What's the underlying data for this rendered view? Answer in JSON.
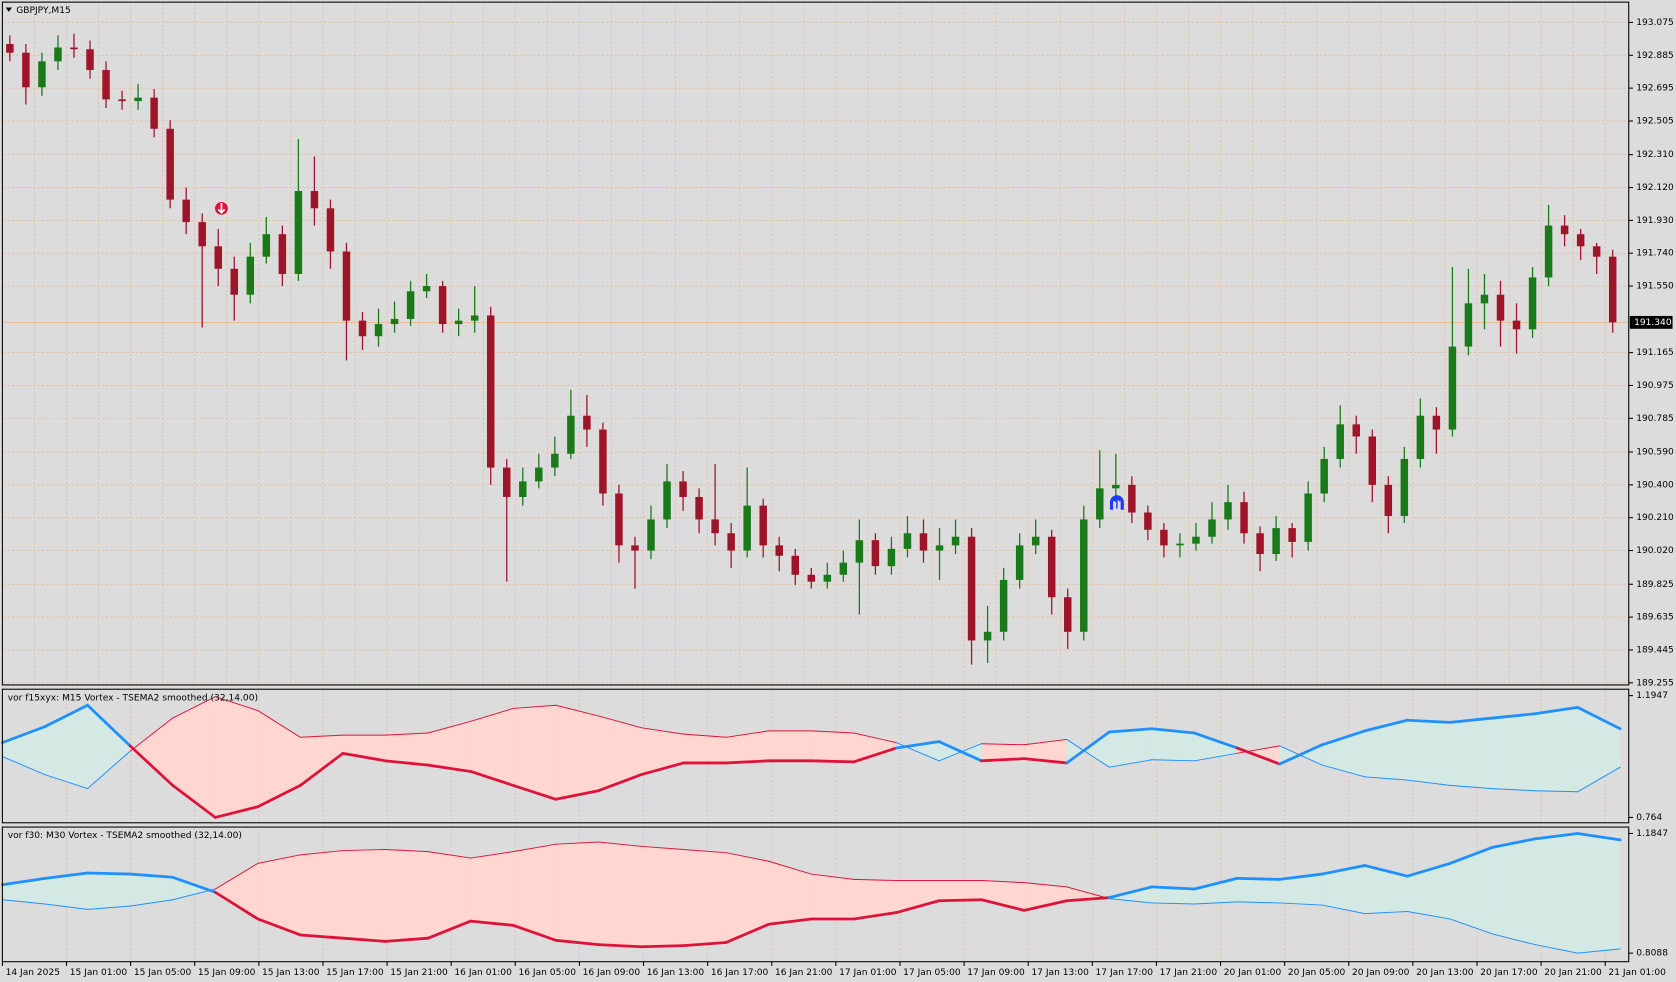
{
  "chart_data": [
    {
      "type": "candlestick",
      "title": "GBPJPY,M15",
      "x_labels": [
        "14 Jan 2025",
        "15 Jan 01:00",
        "15 Jan 05:00",
        "15 Jan 09:00",
        "15 Jan 13:00",
        "15 Jan 17:00",
        "15 Jan 21:00",
        "16 Jan 01:00",
        "16 Jan 05:00",
        "16 Jan 09:00",
        "16 Jan 13:00",
        "16 Jan 17:00",
        "16 Jan 21:00",
        "17 Jan 01:00",
        "17 Jan 05:00",
        "17 Jan 09:00",
        "17 Jan 13:00",
        "17 Jan 17:00",
        "17 Jan 21:00",
        "20 Jan 01:00",
        "20 Jan 05:00",
        "20 Jan 09:00",
        "20 Jan 13:00",
        "20 Jan 17:00",
        "20 Jan 21:00",
        "21 Jan 01:00"
      ],
      "open": [
        192.95,
        192.9,
        192.7,
        192.85,
        192.93,
        192.92,
        192.8,
        192.63,
        192.62,
        192.64,
        192.46,
        192.05,
        191.92,
        191.78,
        191.65,
        191.5,
        191.72,
        191.85,
        191.62,
        192.1,
        192.0,
        191.75,
        191.35,
        191.26,
        191.33,
        191.36,
        191.52,
        191.55,
        191.33,
        191.35,
        191.38,
        190.5,
        190.33,
        190.42,
        190.5,
        190.58,
        190.8,
        190.72,
        190.35,
        190.05,
        190.02,
        190.2,
        190.42,
        190.33,
        190.2,
        190.12,
        190.02,
        190.28,
        190.05,
        189.99,
        189.88,
        189.84,
        189.88,
        189.95,
        190.08,
        189.93,
        190.03,
        190.12,
        190.02,
        190.05,
        190.1,
        189.5,
        189.55,
        189.85,
        190.05,
        190.1,
        189.75,
        189.55,
        190.2,
        190.38,
        190.4,
        190.24,
        190.14,
        190.05,
        190.06,
        190.1,
        190.2,
        190.3,
        190.12,
        190.0,
        190.15,
        190.07,
        190.35,
        190.55,
        190.75,
        190.68,
        190.4,
        190.22,
        190.55,
        190.8,
        190.72,
        191.2,
        191.45,
        191.5,
        191.35,
        191.3,
        191.6,
        191.9,
        191.85,
        191.78,
        191.72
      ],
      "high": [
        193.0,
        192.95,
        192.9,
        193.0,
        193.01,
        192.97,
        192.85,
        192.68,
        192.72,
        192.69,
        192.51,
        192.12,
        191.97,
        191.88,
        191.72,
        191.8,
        191.95,
        191.9,
        192.4,
        192.3,
        192.05,
        191.8,
        191.4,
        191.42,
        191.46,
        191.58,
        191.62,
        191.58,
        191.42,
        191.55,
        191.43,
        190.55,
        190.5,
        190.58,
        190.68,
        190.95,
        190.92,
        190.76,
        190.4,
        190.1,
        190.28,
        190.52,
        190.48,
        190.38,
        190.52,
        190.18,
        190.5,
        190.32,
        190.1,
        190.03,
        189.92,
        189.95,
        190.02,
        190.2,
        190.12,
        190.1,
        190.22,
        190.2,
        190.15,
        190.2,
        190.15,
        189.7,
        189.92,
        190.12,
        190.2,
        190.14,
        189.8,
        190.28,
        190.6,
        190.58,
        190.45,
        190.28,
        190.18,
        190.12,
        190.18,
        190.3,
        190.4,
        190.36,
        190.16,
        190.22,
        190.18,
        190.42,
        190.62,
        190.86,
        190.8,
        190.72,
        190.45,
        190.62,
        190.9,
        190.85,
        191.66,
        191.65,
        191.62,
        191.58,
        191.45,
        191.66,
        192.02,
        191.96,
        191.88,
        191.8,
        191.76
      ],
      "low": [
        192.85,
        192.6,
        192.65,
        192.8,
        192.87,
        192.75,
        192.58,
        192.57,
        192.57,
        192.41,
        192.0,
        191.85,
        191.31,
        191.55,
        191.35,
        191.45,
        191.68,
        191.55,
        191.58,
        191.9,
        191.65,
        191.12,
        191.18,
        191.2,
        191.28,
        191.32,
        191.48,
        191.28,
        191.26,
        191.28,
        190.4,
        189.84,
        190.28,
        190.38,
        190.45,
        190.55,
        190.62,
        190.28,
        189.95,
        189.8,
        189.97,
        190.15,
        190.25,
        190.12,
        190.05,
        189.92,
        189.98,
        189.98,
        189.9,
        189.82,
        189.8,
        189.8,
        189.84,
        189.65,
        189.88,
        189.88,
        189.98,
        189.95,
        189.85,
        190.0,
        189.36,
        189.37,
        189.5,
        189.8,
        190.0,
        189.65,
        189.45,
        189.5,
        190.15,
        190.3,
        190.18,
        190.08,
        189.98,
        189.98,
        190.02,
        190.06,
        190.14,
        190.06,
        189.9,
        189.96,
        189.98,
        190.02,
        190.3,
        190.5,
        190.58,
        190.3,
        190.12,
        190.18,
        190.5,
        190.58,
        190.68,
        191.15,
        191.3,
        191.2,
        191.16,
        191.25,
        191.55,
        191.78,
        191.7,
        191.62,
        191.28
      ],
      "close": [
        192.9,
        192.7,
        192.85,
        192.93,
        192.92,
        192.8,
        192.63,
        192.62,
        192.64,
        192.46,
        192.05,
        191.92,
        191.78,
        191.65,
        191.5,
        191.72,
        191.85,
        191.62,
        192.1,
        192.0,
        191.75,
        191.35,
        191.26,
        191.33,
        191.36,
        191.52,
        191.55,
        191.33,
        191.35,
        191.38,
        190.5,
        190.33,
        190.42,
        190.5,
        190.58,
        190.8,
        190.72,
        190.35,
        190.05,
        190.02,
        190.2,
        190.42,
        190.33,
        190.2,
        190.12,
        190.02,
        190.28,
        190.05,
        189.99,
        189.88,
        189.84,
        189.88,
        189.95,
        190.08,
        189.93,
        190.03,
        190.12,
        190.02,
        190.05,
        190.1,
        189.5,
        189.55,
        189.85,
        190.05,
        190.1,
        189.75,
        189.55,
        190.2,
        190.38,
        190.4,
        190.24,
        190.14,
        190.05,
        190.06,
        190.1,
        190.2,
        190.3,
        190.12,
        190.0,
        190.15,
        190.07,
        190.35,
        190.55,
        190.75,
        190.68,
        190.4,
        190.22,
        190.55,
        190.8,
        190.72,
        191.2,
        191.45,
        191.5,
        191.35,
        191.3,
        191.6,
        191.9,
        191.85,
        191.78,
        191.72,
        191.34
      ],
      "up_color": "#1a7a1a",
      "down_color": "#a0142a",
      "ylim": [
        189.255,
        193.075
      ],
      "yticks": [
        193.075,
        192.885,
        192.695,
        192.505,
        {
          "value": 192.31,
          "label": "192.310"
        },
        {
          "value": 192.12,
          "label": "192.120"
        },
        {
          "value": 191.93,
          "label": "191.930"
        },
        {
          "value": 191.74,
          "label": "191.740"
        },
        {
          "value": 191.55,
          "label": "191.550"
        },
        191.165,
        190.975,
        190.785,
        {
          "value": 190.59,
          "label": "190.590"
        },
        {
          "value": 190.4,
          "label": "190.400"
        },
        {
          "value": 190.21,
          "label": "190.210"
        },
        {
          "value": 190.02,
          "label": "190.020"
        },
        189.825,
        189.635,
        189.445,
        189.255
      ],
      "current_price": {
        "value": 191.34,
        "label": "191.340"
      },
      "grid": true
    },
    {
      "type": "vortex",
      "title": "vor f15xyx: M15 Vortex - TSEMA2 smoothed (32,14.00)",
      "ylim": [
        0.764,
        1.1947
      ],
      "yticks": [
        1.1947,
        0.764
      ],
      "series": [
        {
          "values": [
            1.0285,
            1.0851,
            1.1607,
            1.0171,
            0.8773,
            0.764,
            0.8018,
            0.8773,
            0.9907,
            0.9642,
            0.9491,
            0.9265,
            0.8773,
            0.8282,
            0.8585,
            0.9151,
            0.9567,
            0.9567,
            0.9642,
            0.9642,
            0.9605,
            1.0096,
            1.0322,
            0.9642,
            0.9718,
            0.9567,
            1.0662,
            1.0776,
            1.0625,
            1.0096,
            0.9529,
            1.0209,
            1.07,
            1.1078,
            1.1002,
            1.1154,
            1.1305,
            1.1531,
            1.0776
          ]
        },
        {
          "values": [
            0.9794,
            0.9151,
            0.866,
            0.9982,
            1.1154,
            1.1909,
            1.1418,
            1.0474,
            1.0549,
            1.0549,
            1.0625,
            1.104,
            1.1494,
            1.1607,
            1.1229,
            1.0814,
            1.0587,
            1.0474,
            1.07,
            1.07,
            1.0625,
            1.0285,
            0.9642,
            1.0247,
            1.0209,
            1.0398,
            0.9416,
            0.968,
            0.9642,
            0.9907,
            1.0171,
            0.9491,
            0.9076,
            0.8962,
            0.8773,
            0.866,
            0.8585,
            0.8547,
            0.9416
          ]
        }
      ],
      "up_color": "#1e90ff",
      "down_color": "#dc143c",
      "up_fill": "#d4e8e4",
      "down_fill": "#ffd6d0"
    },
    {
      "type": "vortex",
      "title": "vor f30: M30 Vortex - TSEMA2 smoothed (32,14.00)",
      "ylim": [
        0.8088,
        1.1847
      ],
      "yticks": [
        1.1847,
        0.8088
      ],
      "series": [
        {
          "values": [
            1.0236,
            1.0437,
            1.0605,
            1.0572,
            1.0471,
            1.0001,
            0.9162,
            0.8659,
            0.8558,
            0.8457,
            0.8558,
            0.9095,
            0.8961,
            0.8491,
            0.8357,
            0.829,
            0.8323,
            0.8424,
            0.8994,
            0.9162,
            0.9162,
            0.9363,
            0.9733,
            0.9766,
            0.9431,
            0.9733,
            0.9833,
            1.0169,
            1.0102,
            1.0437,
            1.0404,
            1.0572,
            1.084,
            1.0505,
            1.0907,
            1.1411,
            1.1679,
            1.1847,
            1.1646
          ]
        },
        {
          "values": [
            0.9766,
            0.9632,
            0.9464,
            0.9565,
            0.9766,
            1.0102,
            1.0907,
            1.1176,
            1.131,
            1.1344,
            1.1276,
            1.1075,
            1.1276,
            1.1511,
            1.1579,
            1.1444,
            1.1344,
            1.1243,
            1.0974,
            1.0572,
            1.0404,
            1.037,
            1.037,
            1.037,
            1.0303,
            1.0169,
            0.98,
            0.9665,
            0.9632,
            0.9699,
            0.9665,
            0.9598,
            0.933,
            0.9397,
            0.9162,
            0.8692,
            0.8357,
            0.8088,
            0.8223
          ]
        }
      ],
      "up_color": "#1e90ff",
      "down_color": "#dc143c",
      "up_fill": "#d4e8e4",
      "down_fill": "#ffd6d0"
    }
  ]
}
